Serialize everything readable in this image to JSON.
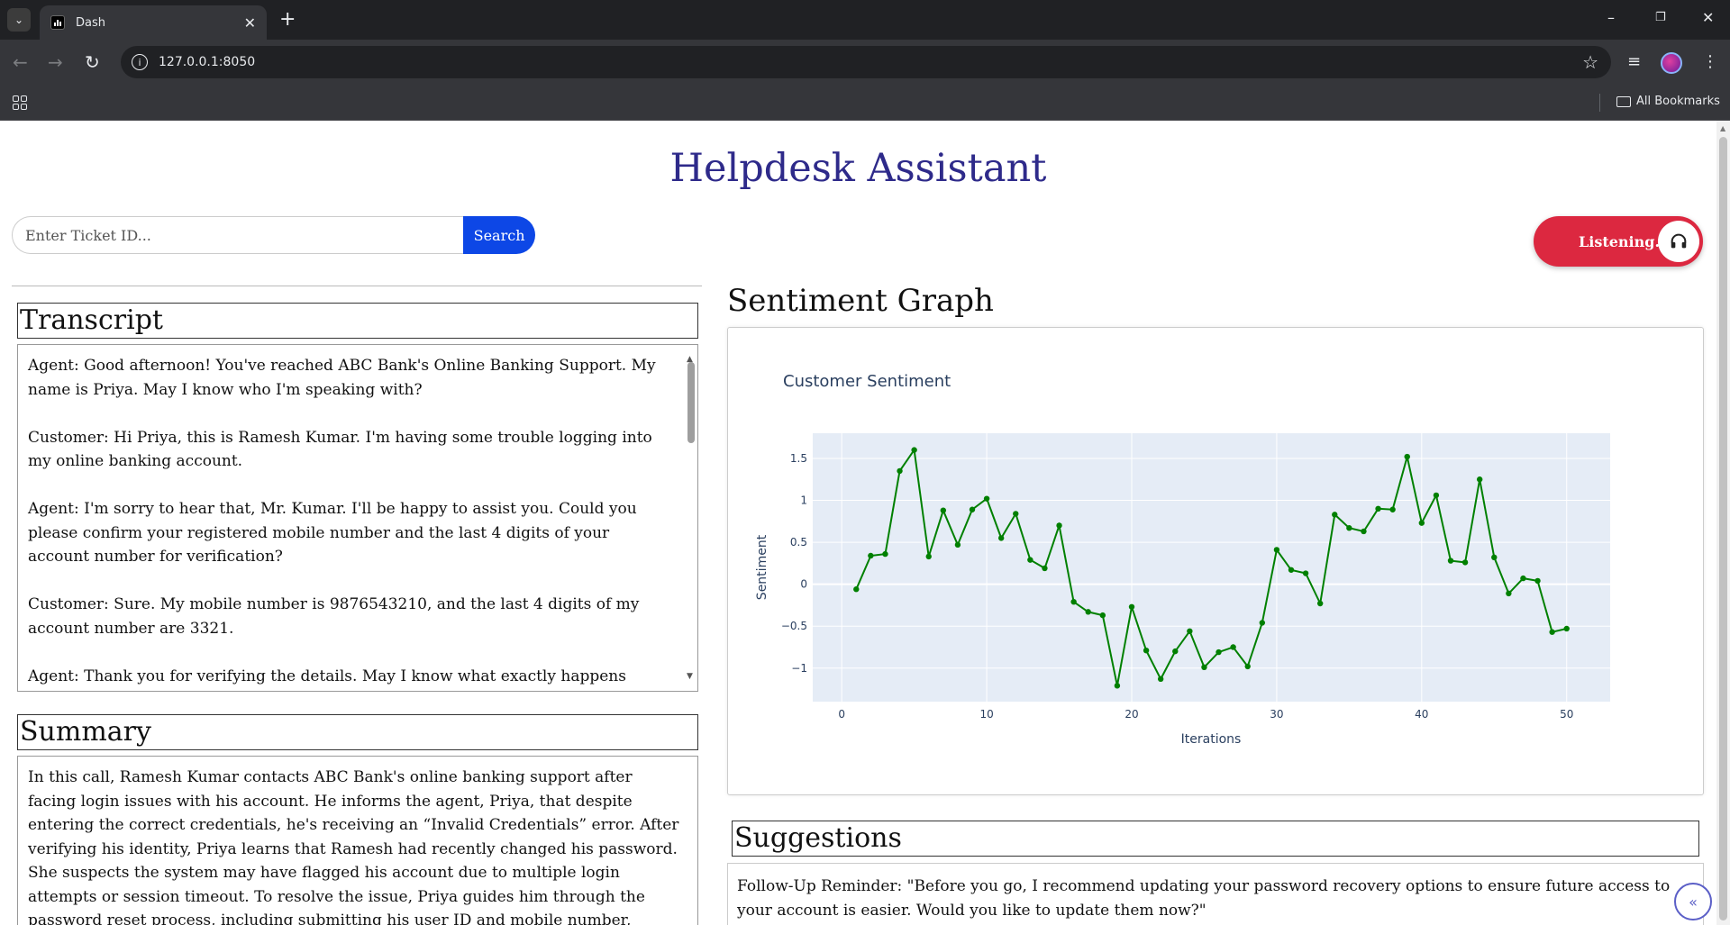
{
  "browser": {
    "tab_title": "Dash",
    "url": "127.0.0.1:8050",
    "bookmarks_label": "All Bookmarks",
    "icons": {
      "tab_list": "chevron-down-icon",
      "new_tab": "plus-icon",
      "back": "back-arrow-icon",
      "forward": "forward-arrow-icon",
      "reload": "reload-icon",
      "site_info": "info-icon",
      "bookmark": "star-icon",
      "media": "media-controls-icon",
      "profile": "avatar",
      "menu": "kebab-menu-icon",
      "apps": "apps-grid-icon",
      "folder": "folder-icon"
    },
    "window_controls": [
      "minimize",
      "restore",
      "close"
    ]
  },
  "app": {
    "title": "Helpdesk Assistant",
    "colors": {
      "title": "#2e2a8a",
      "search_button": "#0d47e6",
      "listen_button": "#dc2840",
      "chart_line": "#008000",
      "plot_bg": "#e5ecf6"
    }
  },
  "search": {
    "placeholder": "Enter Ticket ID...",
    "button_label": "Search"
  },
  "listen": {
    "label": "Listening...",
    "icon": "headphones-icon"
  },
  "transcript": {
    "heading": "Transcript",
    "lines": [
      "Agent: Good afternoon! You've reached ABC Bank's Online Banking Support. My name is Priya. May I know who I'm speaking with?",
      "Customer: Hi Priya, this is Ramesh Kumar. I'm having some trouble logging into my online banking account.",
      "Agent: I'm sorry to hear that, Mr. Kumar. I'll be happy to assist you. Could you please confirm your registered mobile number and the last 4 digits of your account number for verification?",
      "Customer: Sure. My mobile number is 9876543210, and the last 4 digits of my account number are 3321.",
      "Agent: Thank you for verifying the details. May I know what exactly happens when you try to log in?"
    ]
  },
  "summary": {
    "heading": "Summary",
    "text": "In this call, Ramesh Kumar contacts ABC Bank's online banking support after facing login issues with his account. He informs the agent, Priya, that despite entering the correct credentials, he's receiving an “Invalid Credentials” error. After verifying his identity, Priya learns that Ramesh had recently changed his password. She suspects the system may have flagged his account due to multiple login attempts or session timeout. To resolve the issue, Priya guides him through the password reset process, including submitting his user ID and mobile number, entering the received OTP, and setting a new secure password. Ramesh"
  },
  "sentiment_graph": {
    "heading": "Sentiment Graph"
  },
  "chart_data": {
    "type": "line",
    "title": "Customer Sentiment",
    "xlabel": "Iterations",
    "ylabel": "Sentiment",
    "xlim": [
      -2,
      53
    ],
    "ylim": [
      -1.4,
      1.8
    ],
    "x_ticks": [
      0,
      10,
      20,
      30,
      40,
      50
    ],
    "y_ticks": [
      -1,
      -0.5,
      0,
      0.5,
      1,
      1.5
    ],
    "y_tick_labels": [
      "−1",
      "−0.5",
      "0",
      "0.5",
      "1",
      "1.5"
    ],
    "grid": true,
    "markers": true,
    "series": [
      {
        "color": "#008000",
        "x": [
          1,
          2,
          3,
          4,
          5,
          6,
          7,
          8,
          9,
          10,
          11,
          12,
          13,
          14,
          15,
          16,
          17,
          18,
          19,
          20,
          21,
          22,
          23,
          24,
          25,
          26,
          27,
          28,
          29,
          30,
          31,
          32,
          33,
          34,
          35,
          36,
          37,
          38,
          39,
          40,
          41,
          42,
          43,
          44,
          45,
          46,
          47,
          48,
          49,
          50
        ],
        "y": [
          -0.06,
          0.34,
          0.36,
          1.35,
          1.6,
          0.33,
          0.88,
          0.47,
          0.89,
          1.02,
          0.55,
          0.84,
          0.29,
          0.19,
          0.7,
          -0.21,
          -0.33,
          -0.37,
          -1.21,
          -0.27,
          -0.79,
          -1.13,
          -0.8,
          -0.56,
          -0.99,
          -0.81,
          -0.75,
          -0.98,
          -0.46,
          0.41,
          0.17,
          0.13,
          -0.23,
          0.83,
          0.67,
          0.63,
          0.9,
          0.89,
          1.52,
          0.73,
          1.06,
          0.28,
          0.26,
          1.25,
          0.32,
          -0.11,
          0.07,
          0.04,
          -0.57,
          -0.53
        ]
      }
    ]
  },
  "suggestions": {
    "heading": "Suggestions",
    "text": "Follow-Up Reminder: \"Before you go, I recommend updating your password recovery options to ensure future access to your account is easier. Would you like to update them now?\""
  },
  "fab": {
    "icon": "double-chevron-left-icon"
  }
}
